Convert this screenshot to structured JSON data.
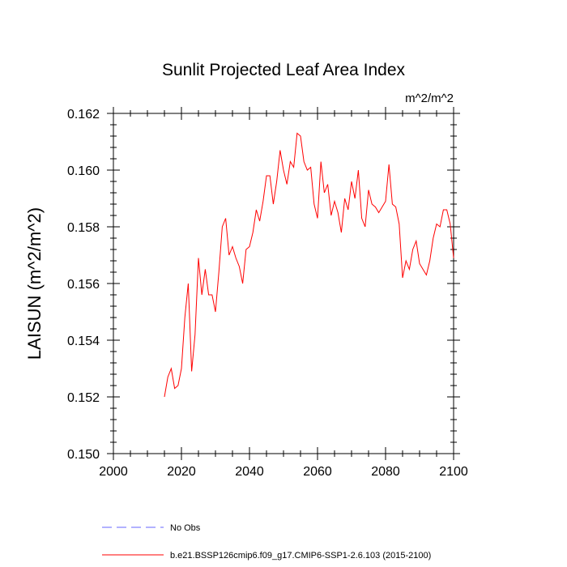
{
  "chart_data": {
    "type": "line",
    "title": "Sunlit Projected Leaf Area Index",
    "units": "m^2/m^2",
    "xlabel": "",
    "ylabel": "LAISUN  (m^2/m^2)",
    "xlim": [
      2000,
      2100
    ],
    "ylim": [
      0.15,
      0.162
    ],
    "x_ticks": [
      2000,
      2020,
      2040,
      2060,
      2080,
      2100
    ],
    "x_tick_labels": [
      "2000",
      "2020",
      "2040",
      "2060",
      "2080",
      "2100"
    ],
    "y_ticks": [
      0.15,
      0.152,
      0.154,
      0.156,
      0.158,
      0.16,
      0.162
    ],
    "y_tick_labels": [
      "0.150",
      "0.152",
      "0.154",
      "0.156",
      "0.158",
      "0.160",
      "0.162"
    ],
    "series": [
      {
        "name": "b.e21.BSSP126cmip6.f09_g17.CMIP6-SSP1-2.6.103 (2015-2100)",
        "color": "#ff0000",
        "style": "solid",
        "x": [
          2015,
          2016,
          2017,
          2018,
          2019,
          2020,
          2021,
          2022,
          2023,
          2024,
          2025,
          2026,
          2027,
          2028,
          2029,
          2030,
          2031,
          2032,
          2033,
          2034,
          2035,
          2036,
          2037,
          2038,
          2039,
          2040,
          2041,
          2042,
          2043,
          2044,
          2045,
          2046,
          2047,
          2048,
          2049,
          2050,
          2051,
          2052,
          2053,
          2054,
          2055,
          2056,
          2057,
          2058,
          2059,
          2060,
          2061,
          2062,
          2063,
          2064,
          2065,
          2066,
          2067,
          2068,
          2069,
          2070,
          2071,
          2072,
          2073,
          2074,
          2075,
          2076,
          2077,
          2078,
          2079,
          2080,
          2081,
          2082,
          2083,
          2084,
          2085,
          2086,
          2087,
          2088,
          2089,
          2090,
          2091,
          2092,
          2093,
          2094,
          2095,
          2096,
          2097,
          2098,
          2099,
          2100
        ],
        "values": [
          0.152,
          0.1527,
          0.153,
          0.1523,
          0.1524,
          0.153,
          0.1548,
          0.156,
          0.1529,
          0.1542,
          0.1569,
          0.1556,
          0.1565,
          0.1556,
          0.1556,
          0.155,
          0.1564,
          0.158,
          0.1583,
          0.157,
          0.1573,
          0.1569,
          0.1566,
          0.156,
          0.1572,
          0.1573,
          0.1578,
          0.1586,
          0.1582,
          0.1589,
          0.1598,
          0.1598,
          0.1588,
          0.1596,
          0.1607,
          0.16,
          0.1595,
          0.1603,
          0.1601,
          0.1613,
          0.1612,
          0.1603,
          0.16,
          0.1601,
          0.1588,
          0.1583,
          0.1603,
          0.1592,
          0.1595,
          0.1584,
          0.1589,
          0.1585,
          0.1578,
          0.159,
          0.1586,
          0.1596,
          0.159,
          0.16,
          0.1583,
          0.158,
          0.1593,
          0.1588,
          0.1587,
          0.1585,
          0.1587,
          0.1589,
          0.1602,
          0.1588,
          0.1587,
          0.1581,
          0.1562,
          0.1568,
          0.1565,
          0.1572,
          0.1575,
          0.1567,
          0.1565,
          0.1563,
          0.1568,
          0.1576,
          0.1581,
          0.158,
          0.1586,
          0.1586,
          0.1581,
          0.1569
        ]
      },
      {
        "name": "No Obs",
        "color": "#6666ff",
        "style": "dashed",
        "x": [],
        "values": []
      }
    ]
  }
}
